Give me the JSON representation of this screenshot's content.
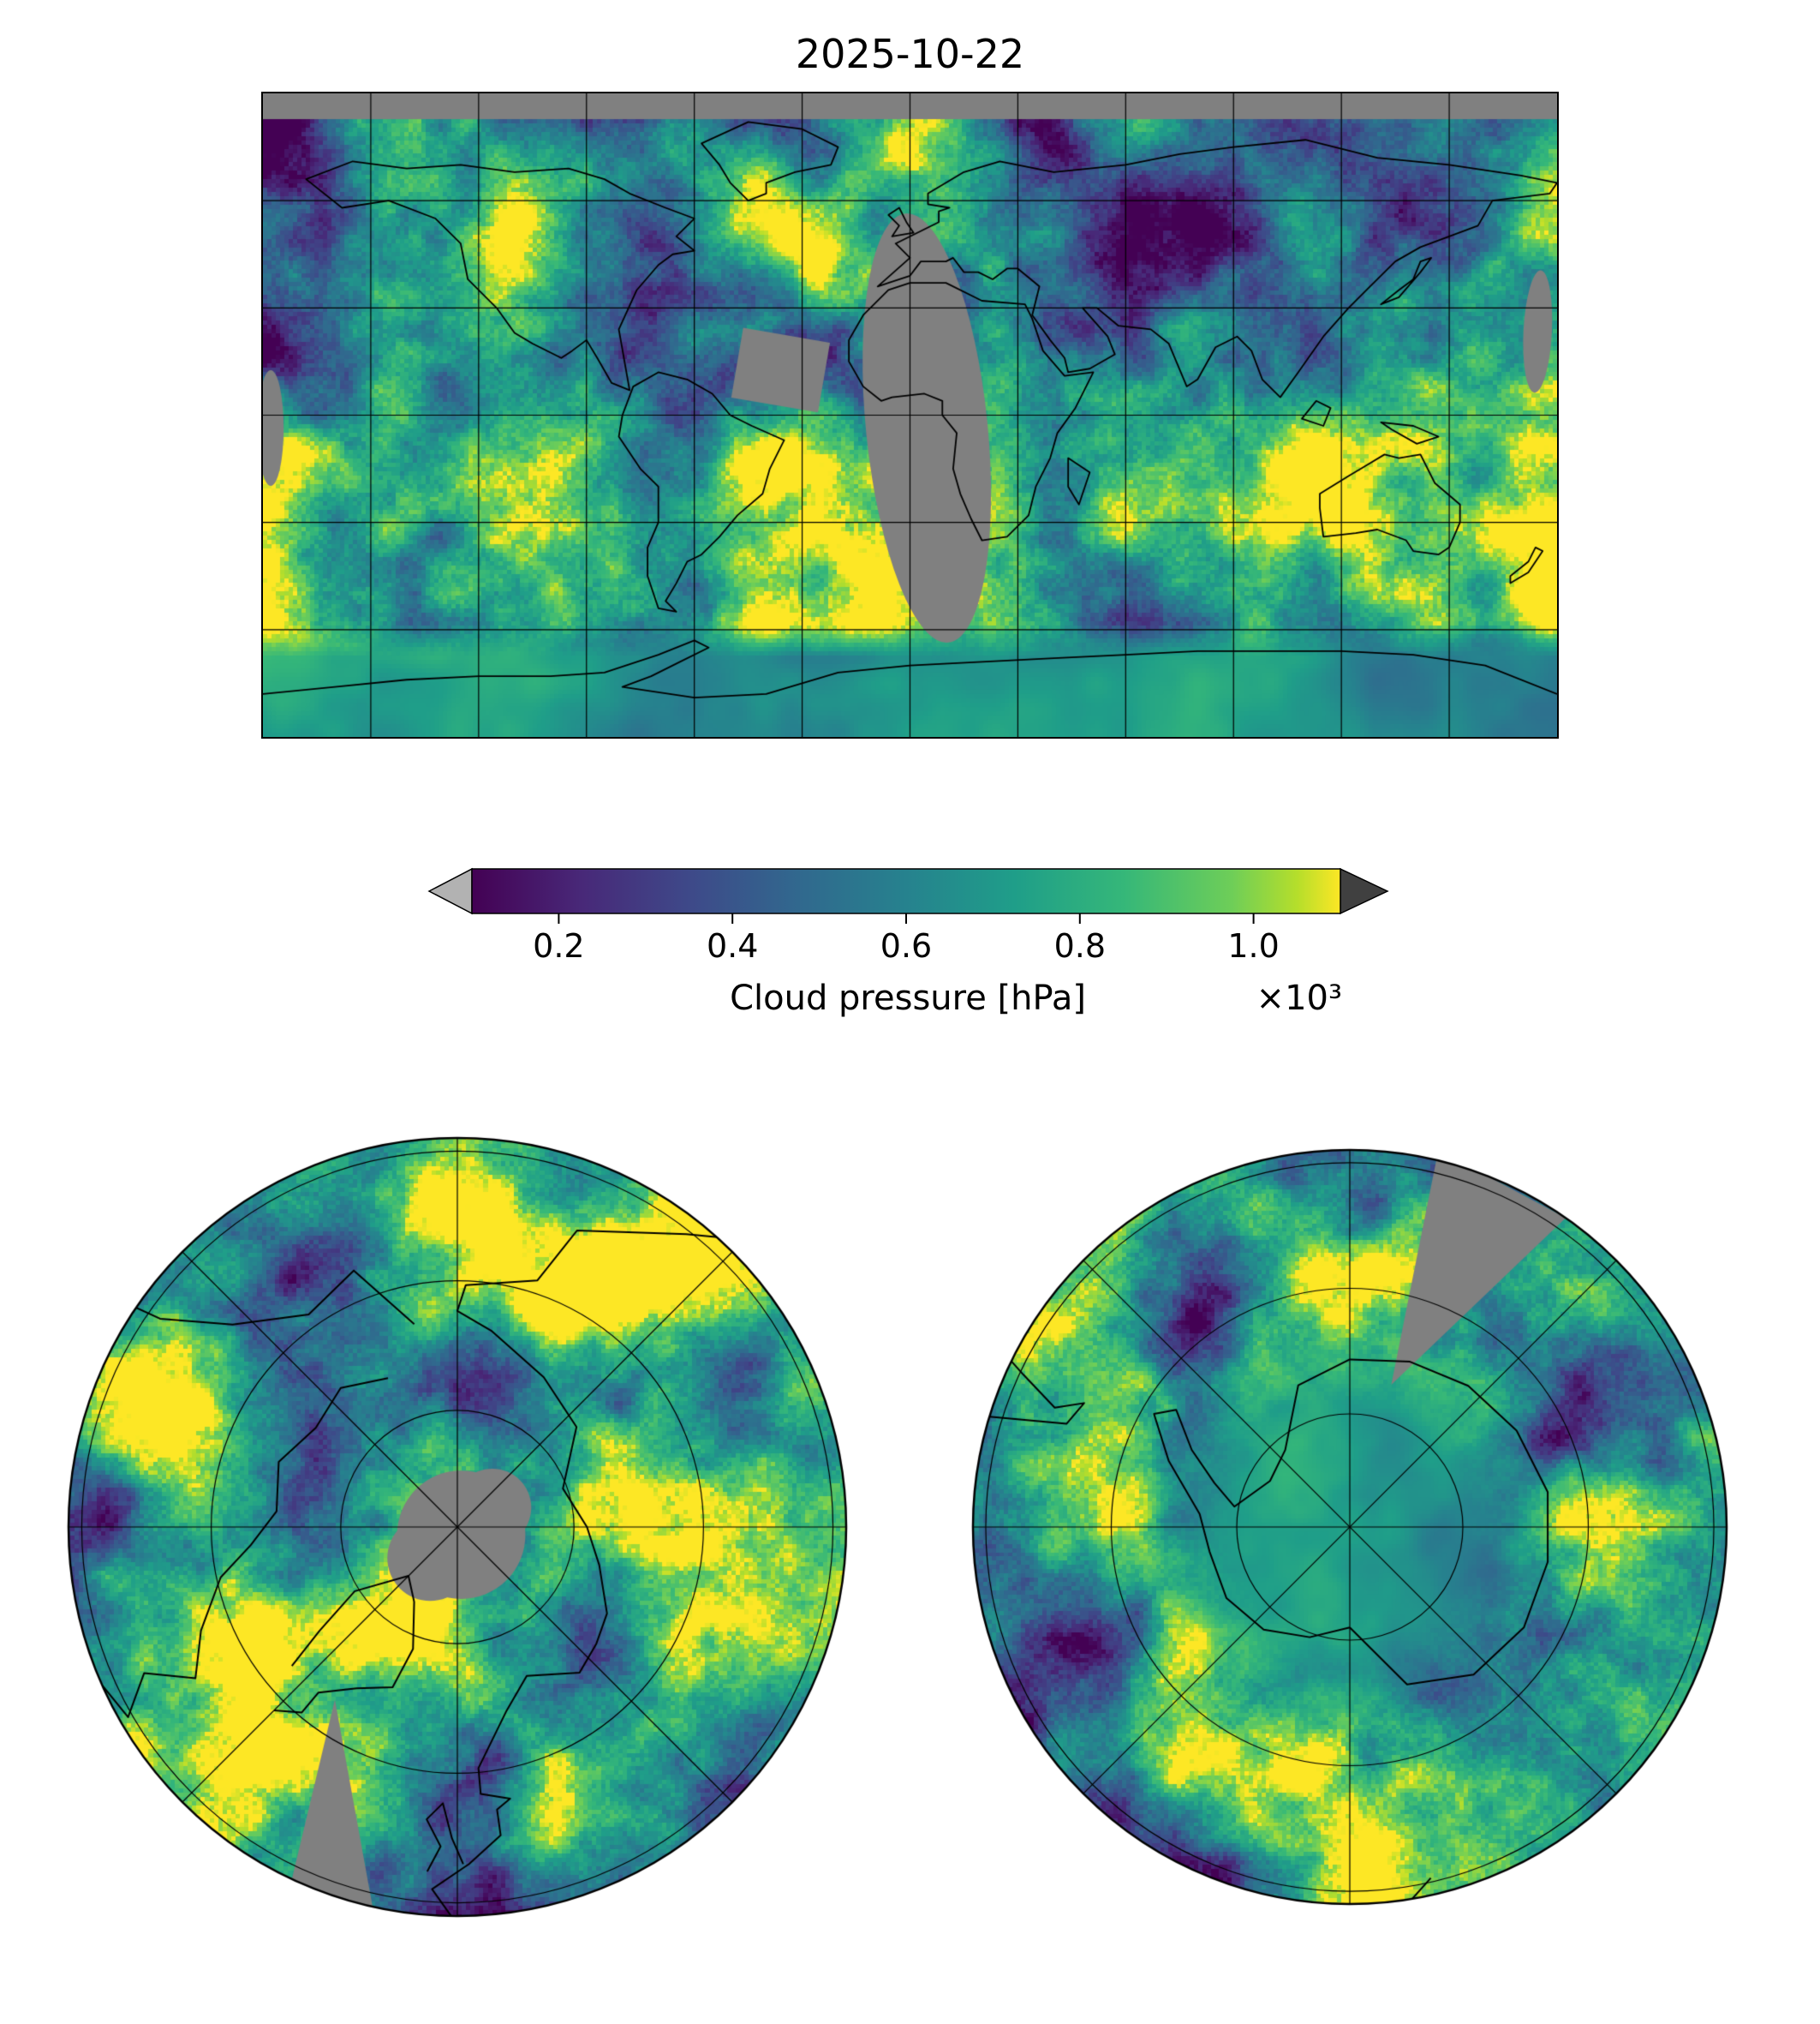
{
  "title": "2025-10-22",
  "colorbar": {
    "label": "Cloud pressure [hPa]",
    "multiplier": "×10³",
    "tick_labels": [
      "0.2",
      "0.4",
      "0.6",
      "0.8",
      "1.0"
    ],
    "tick_values": [
      0.2,
      0.4,
      0.6,
      0.8,
      1.0
    ],
    "vmin": 0.1,
    "vmax": 1.1,
    "under_color": "#b2b2b2",
    "over_color": "#404040",
    "outline_color": "#000000",
    "stops": [
      [
        "0.0",
        "#440154"
      ],
      [
        "0.125",
        "#482878"
      ],
      [
        "0.25",
        "#3e4989"
      ],
      [
        "0.375",
        "#31688e"
      ],
      [
        "0.5",
        "#26828e"
      ],
      [
        "0.625",
        "#1f9e89"
      ],
      [
        "0.75",
        "#35b779"
      ],
      [
        "0.875",
        "#6ece58"
      ],
      [
        "0.95",
        "#b5de2b"
      ],
      [
        "1.0",
        "#fde725"
      ]
    ]
  },
  "chart_data": {
    "type": "heatmap",
    "title": "2025-10-22",
    "variable": "Cloud pressure",
    "units": "hPa",
    "colormap": "viridis",
    "value_range_hpa": [
      100,
      1100
    ],
    "colorbar_ticks_hpa": [
      200,
      400,
      600,
      800,
      1000
    ],
    "colorbar_tick_labels": [
      "0.2",
      "0.4",
      "0.6",
      "0.8",
      "1.0"
    ],
    "scale_multiplier": "×10³",
    "colorbar_extend": "both",
    "missing_data_color": "#808080",
    "grid": true,
    "panels": [
      {
        "name": "global-map",
        "projection": "equirectangular (plate carrée)",
        "lon_range": [
          -180,
          180
        ],
        "lat_range": [
          -90,
          90
        ],
        "graticule_spacing_deg": 30,
        "coastlines": true,
        "missing_data": "gray band above ~82°N, orbital-gap swath over Africa, small gaps over the mid-Atlantic and map edges"
      },
      {
        "name": "north-polar-map",
        "projection": "north polar stereographic",
        "lat_limit_deg": 45,
        "graticule": "latitude circles plus meridians every 45°",
        "coastlines": true,
        "missing_data": "gray disk over the pole and a thin wedge toward the bottom rim"
      },
      {
        "name": "south-polar-map",
        "projection": "south polar stereographic",
        "lat_limit_deg": -45,
        "graticule": "latitude circles plus meridians every 45°",
        "coastlines": true,
        "missing_data": "gray wedge from the top rim toward the pole"
      }
    ],
    "description": "Satellite-retrieved cloud pressure field for 2025-10-22. Values mostly 600–1000 hPa (green–yellow low cloud) with cyclonic bands and swirls of high cloud at 150–500 hPa (blue–purple). Gray areas denote missing data."
  }
}
